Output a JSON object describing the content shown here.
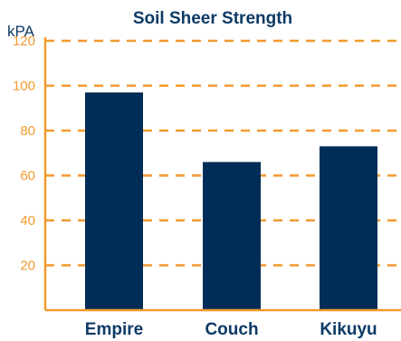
{
  "chart_data": {
    "type": "bar",
    "title": "Soil Sheer Strength",
    "ylabel": "kPA",
    "xlabel": "",
    "categories": [
      "Empire",
      "Couch",
      "Kikuyu"
    ],
    "values": [
      97,
      66,
      73
    ],
    "ylim": [
      0,
      120
    ],
    "yticks": [
      "20",
      "40",
      "60",
      "80",
      "100",
      "120"
    ],
    "grid": true,
    "grid_style": "dashed",
    "colors": {
      "bar": "#002d57",
      "grid": "#f29a2e",
      "axis": "#f29a2e",
      "text": "#0e3a66",
      "tick_text": "#f29a2e"
    }
  }
}
